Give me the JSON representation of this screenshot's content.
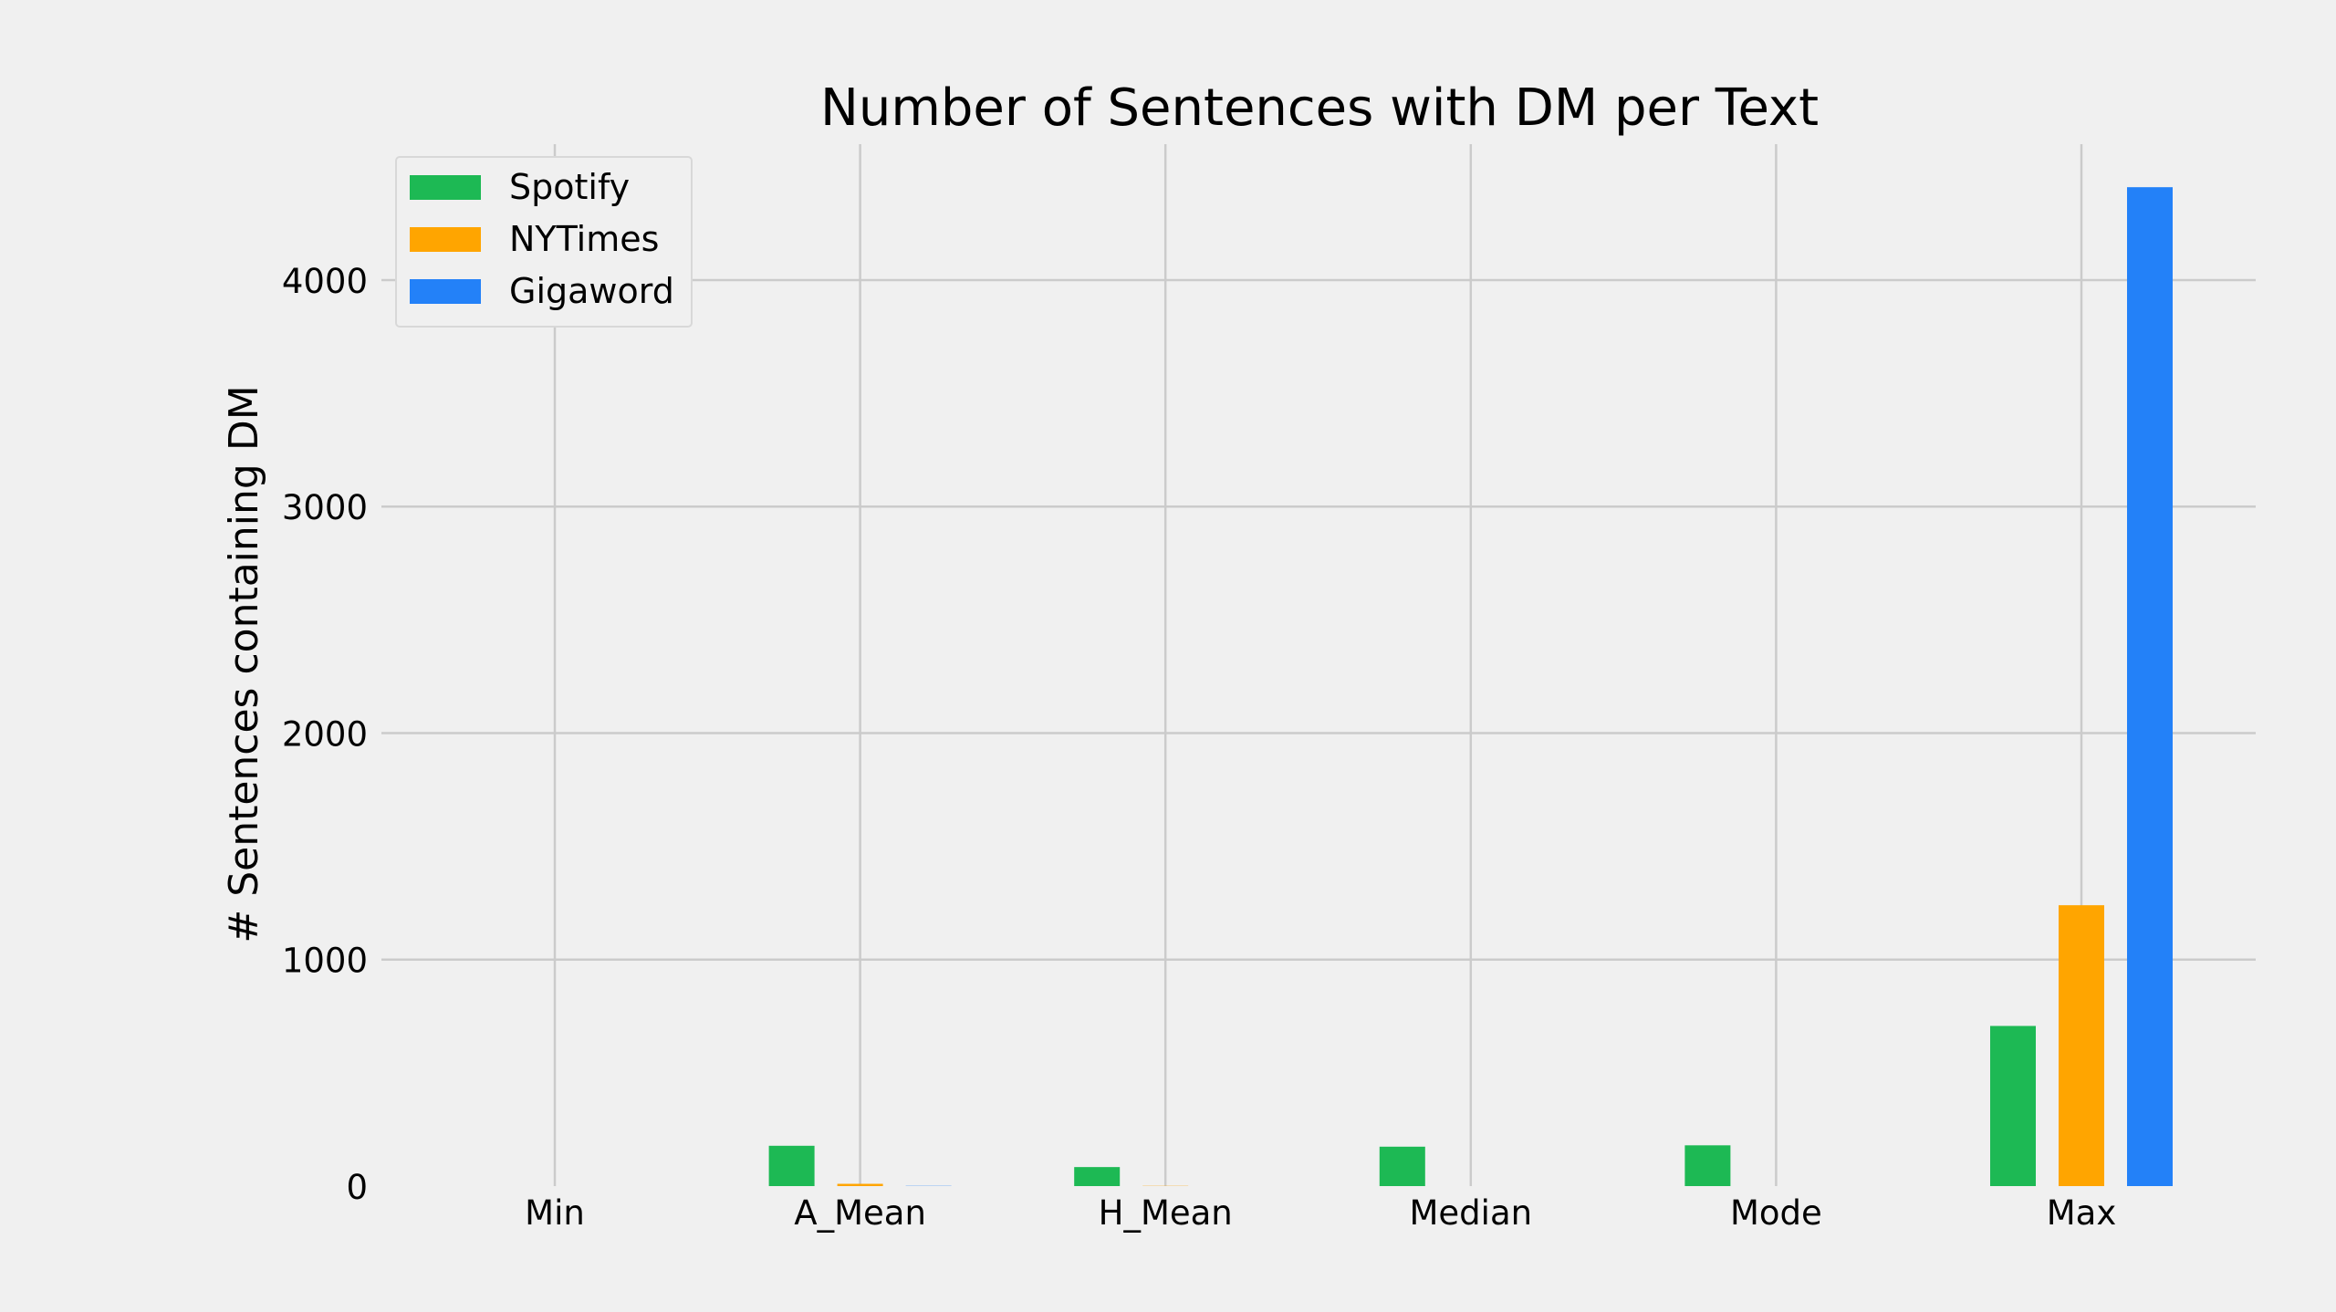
{
  "chart_data": {
    "type": "bar",
    "title": "Number of Sentences with DM per Text",
    "xlabel": "",
    "ylabel": "# Sentences containing DM",
    "categories": [
      "Min",
      "A_Mean",
      "H_Mean",
      "Median",
      "Mode",
      "Max"
    ],
    "series": [
      {
        "name": "Spotify",
        "color": "#1db954",
        "values": [
          0,
          178,
          84,
          174,
          180,
          707
        ]
      },
      {
        "name": "NYTimes",
        "color": "#ffa500",
        "values": [
          0,
          10,
          1,
          0,
          0,
          1240
        ]
      },
      {
        "name": "Gigaword",
        "color": "#2381f8",
        "values": [
          0,
          1,
          0,
          0,
          0,
          4410
        ]
      }
    ],
    "ylim": [
      0,
      4600
    ],
    "yticks": [
      0,
      1000,
      2000,
      3000,
      4000
    ],
    "grid": true,
    "legend": "top-left",
    "colors": {
      "background": "#f0f0f0",
      "grid": "#cbcbcb"
    }
  }
}
